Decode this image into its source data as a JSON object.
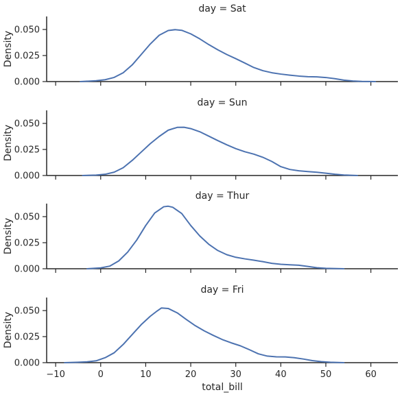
{
  "chart_data": {
    "type": "line",
    "x_axis": {
      "label": "total_bill",
      "lim": [
        -12,
        66
      ],
      "ticks": [
        -10,
        0,
        10,
        20,
        30,
        40,
        50,
        60
      ],
      "tick_labels": [
        "−10",
        "0",
        "10",
        "20",
        "30",
        "40",
        "50",
        "60"
      ]
    },
    "y_axis": {
      "label": "Density",
      "lim": [
        0,
        0.0625
      ],
      "ticks": [
        0,
        0.025,
        0.05
      ],
      "tick_labels": [
        "0.000",
        "0.025",
        "0.050"
      ]
    },
    "grid": false,
    "line_color": "#4c72b0",
    "axis_color": "#262626",
    "panels": [
      {
        "title": "day = Sat",
        "points": [
          [
            -4.5,
            0
          ],
          [
            -1,
            0.0008
          ],
          [
            1,
            0.0018
          ],
          [
            3,
            0.004
          ],
          [
            5,
            0.0085
          ],
          [
            7,
            0.016
          ],
          [
            9,
            0.026
          ],
          [
            11,
            0.036
          ],
          [
            13,
            0.0445
          ],
          [
            15,
            0.049
          ],
          [
            16.5,
            0.0498
          ],
          [
            18,
            0.0492
          ],
          [
            20,
            0.0458
          ],
          [
            22,
            0.041
          ],
          [
            24,
            0.0355
          ],
          [
            26,
            0.0305
          ],
          [
            28,
            0.026
          ],
          [
            30,
            0.022
          ],
          [
            32,
            0.0178
          ],
          [
            34,
            0.0135
          ],
          [
            36,
            0.0105
          ],
          [
            38,
            0.0085
          ],
          [
            40,
            0.0072
          ],
          [
            42,
            0.0062
          ],
          [
            44,
            0.0053
          ],
          [
            46,
            0.0047
          ],
          [
            48,
            0.0045
          ],
          [
            50,
            0.0039
          ],
          [
            52,
            0.0028
          ],
          [
            54,
            0.0014
          ],
          [
            56,
            0.0006
          ],
          [
            58,
            0.0002
          ],
          [
            61,
            0
          ]
        ]
      },
      {
        "title": "day = Sun",
        "points": [
          [
            -4,
            0
          ],
          [
            -1,
            0.0004
          ],
          [
            1,
            0.0012
          ],
          [
            3,
            0.0032
          ],
          [
            5,
            0.0075
          ],
          [
            7,
            0.0145
          ],
          [
            9,
            0.0225
          ],
          [
            11,
            0.0305
          ],
          [
            13,
            0.0375
          ],
          [
            15,
            0.0435
          ],
          [
            17,
            0.0462
          ],
          [
            18.5,
            0.0463
          ],
          [
            20,
            0.045
          ],
          [
            22,
            0.042
          ],
          [
            24,
            0.0378
          ],
          [
            26,
            0.0335
          ],
          [
            28,
            0.0295
          ],
          [
            30,
            0.0258
          ],
          [
            32,
            0.0228
          ],
          [
            34,
            0.0205
          ],
          [
            36,
            0.0175
          ],
          [
            38,
            0.0135
          ],
          [
            40,
            0.0085
          ],
          [
            42,
            0.0058
          ],
          [
            44,
            0.0045
          ],
          [
            46,
            0.0038
          ],
          [
            48,
            0.0031
          ],
          [
            50,
            0.0022
          ],
          [
            52,
            0.0012
          ],
          [
            54,
            0.0005
          ],
          [
            57,
            0
          ]
        ]
      },
      {
        "title": "day = Thur",
        "points": [
          [
            -3,
            0
          ],
          [
            0,
            0.0008
          ],
          [
            2,
            0.0025
          ],
          [
            4,
            0.0075
          ],
          [
            6,
            0.016
          ],
          [
            8,
            0.0275
          ],
          [
            10,
            0.0415
          ],
          [
            12,
            0.0535
          ],
          [
            14,
            0.0595
          ],
          [
            15,
            0.06
          ],
          [
            16,
            0.059
          ],
          [
            18,
            0.053
          ],
          [
            20,
            0.0415
          ],
          [
            22,
            0.0315
          ],
          [
            24,
            0.0235
          ],
          [
            26,
            0.0175
          ],
          [
            28,
            0.0135
          ],
          [
            30,
            0.011
          ],
          [
            32,
            0.0095
          ],
          [
            34,
            0.0082
          ],
          [
            36,
            0.0068
          ],
          [
            38,
            0.0052
          ],
          [
            40,
            0.0043
          ],
          [
            42,
            0.0038
          ],
          [
            44,
            0.0034
          ],
          [
            46,
            0.0022
          ],
          [
            48,
            0.001
          ],
          [
            50,
            0.0004
          ],
          [
            54,
            0
          ]
        ]
      },
      {
        "title": "day = Fri",
        "points": [
          [
            -8,
            0
          ],
          [
            -5,
            0.0004
          ],
          [
            -3,
            0.0008
          ],
          [
            -1,
            0.0018
          ],
          [
            1,
            0.0048
          ],
          [
            3,
            0.0095
          ],
          [
            5,
            0.0175
          ],
          [
            7,
            0.027
          ],
          [
            9,
            0.0365
          ],
          [
            11,
            0.0445
          ],
          [
            12.5,
            0.0495
          ],
          [
            13.5,
            0.0525
          ],
          [
            15,
            0.052
          ],
          [
            17,
            0.0478
          ],
          [
            19,
            0.0415
          ],
          [
            21,
            0.0355
          ],
          [
            23,
            0.0305
          ],
          [
            25,
            0.0262
          ],
          [
            27,
            0.0222
          ],
          [
            29,
            0.019
          ],
          [
            31,
            0.0162
          ],
          [
            33,
            0.0125
          ],
          [
            35,
            0.0085
          ],
          [
            37,
            0.0063
          ],
          [
            39,
            0.0056
          ],
          [
            41,
            0.0055
          ],
          [
            43,
            0.0048
          ],
          [
            45,
            0.0035
          ],
          [
            47,
            0.002
          ],
          [
            49,
            0.001
          ],
          [
            51,
            0.0004
          ],
          [
            54,
            0
          ]
        ]
      }
    ]
  }
}
